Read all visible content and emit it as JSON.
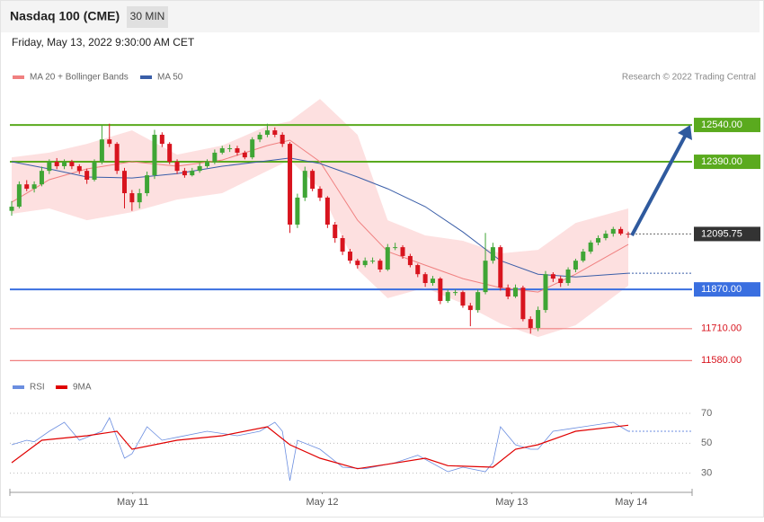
{
  "chart_data": {
    "type": "candlestick",
    "title": "Nasdaq 100 (CME)",
    "interval": "30 MIN",
    "subtitle": "Friday, May 13, 2022 9:30:00 AM CET",
    "credit": "Research © 2022 Trading Central",
    "colors": {
      "up": "#3fa535",
      "down": "#d8141e"
    },
    "xlim": [
      1,
      83
    ],
    "ylim": [
      11530,
      12683
    ],
    "xticks": [
      {
        "value": 17.1,
        "label": "May 11"
      },
      {
        "value": 42.3,
        "label": "May 12"
      },
      {
        "value": 67.5,
        "label": "May 13"
      },
      {
        "value": 83.4,
        "label": "May 14"
      }
    ],
    "ohlc": [
      [
        12190,
        12230,
        12170,
        12207
      ],
      [
        12207,
        12310,
        12200,
        12298
      ],
      [
        12298,
        12315,
        12270,
        12280
      ],
      [
        12280,
        12310,
        12265,
        12298
      ],
      [
        12298,
        12370,
        12290,
        12353
      ],
      [
        12353,
        12400,
        12340,
        12390
      ],
      [
        12390,
        12405,
        12360,
        12372
      ],
      [
        12372,
        12400,
        12360,
        12390
      ],
      [
        12390,
        12398,
        12360,
        12372
      ],
      [
        12372,
        12380,
        12340,
        12353
      ],
      [
        12353,
        12362,
        12300,
        12317
      ],
      [
        12317,
        12400,
        12310,
        12390
      ],
      [
        12390,
        12540,
        12380,
        12481
      ],
      [
        12481,
        12545,
        12450,
        12463
      ],
      [
        12463,
        12470,
        12340,
        12353
      ],
      [
        12353,
        12365,
        12200,
        12262
      ],
      [
        12262,
        12275,
        12190,
        12225
      ],
      [
        12225,
        12280,
        12200,
        12262
      ],
      [
        12262,
        12350,
        12250,
        12335
      ],
      [
        12335,
        12520,
        12320,
        12500
      ],
      [
        12500,
        12510,
        12450,
        12463
      ],
      [
        12463,
        12470,
        12380,
        12390
      ],
      [
        12390,
        12400,
        12340,
        12353
      ],
      [
        12353,
        12365,
        12325,
        12335
      ],
      [
        12335,
        12365,
        12330,
        12353
      ],
      [
        12353,
        12385,
        12345,
        12372
      ],
      [
        12372,
        12400,
        12365,
        12390
      ],
      [
        12390,
        12440,
        12380,
        12427
      ],
      [
        12427,
        12455,
        12420,
        12445
      ],
      [
        12445,
        12460,
        12430,
        12445
      ],
      [
        12445,
        12455,
        12415,
        12427
      ],
      [
        12427,
        12435,
        12400,
        12408
      ],
      [
        12408,
        12490,
        12400,
        12481
      ],
      [
        12481,
        12510,
        12470,
        12500
      ],
      [
        12500,
        12545,
        12490,
        12518
      ],
      [
        12518,
        12530,
        12490,
        12500
      ],
      [
        12500,
        12510,
        12450,
        12463
      ],
      [
        12463,
        12470,
        12100,
        12134
      ],
      [
        12134,
        12260,
        12120,
        12244
      ],
      [
        12244,
        12370,
        12230,
        12353
      ],
      [
        12353,
        12360,
        12270,
        12280
      ],
      [
        12280,
        12290,
        12230,
        12244
      ],
      [
        12244,
        12250,
        12120,
        12134
      ],
      [
        12134,
        12145,
        12060,
        12079
      ],
      [
        12079,
        12090,
        12010,
        12024
      ],
      [
        12024,
        12035,
        11975,
        11987
      ],
      [
        11987,
        11995,
        11955,
        11969
      ],
      [
        11969,
        12000,
        11960,
        11987
      ],
      [
        11987,
        12000,
        11975,
        11987
      ],
      [
        11987,
        11995,
        11940,
        11951
      ],
      [
        11951,
        12055,
        11945,
        12042
      ],
      [
        12042,
        12060,
        12030,
        12042
      ],
      [
        12042,
        12050,
        11995,
        12006
      ],
      [
        12006,
        12015,
        11960,
        11969
      ],
      [
        11969,
        11975,
        11920,
        11932
      ],
      [
        11932,
        11940,
        11880,
        11896
      ],
      [
        11896,
        11925,
        11885,
        11914
      ],
      [
        11914,
        11920,
        11810,
        11823
      ],
      [
        11823,
        11870,
        11815,
        11859
      ],
      [
        11859,
        11870,
        11845,
        11859
      ],
      [
        11859,
        11865,
        11795,
        11804
      ],
      [
        11804,
        11815,
        11720,
        11786
      ],
      [
        11786,
        11870,
        11775,
        11859
      ],
      [
        11859,
        12100,
        11850,
        11987
      ],
      [
        11987,
        12060,
        11975,
        12042
      ],
      [
        12042,
        12050,
        11865,
        11877
      ],
      [
        11877,
        11890,
        11830,
        11841
      ],
      [
        11841,
        11890,
        11835,
        11877
      ],
      [
        11877,
        11885,
        11740,
        11749
      ],
      [
        11749,
        11760,
        11690,
        11713
      ],
      [
        11713,
        11800,
        11700,
        11786
      ],
      [
        11786,
        11945,
        11775,
        11932
      ],
      [
        11932,
        11940,
        11900,
        11914
      ],
      [
        11914,
        11925,
        11880,
        11896
      ],
      [
        11896,
        11960,
        11885,
        11951
      ],
      [
        11951,
        11995,
        11940,
        11987
      ],
      [
        11987,
        12035,
        11980,
        12024
      ],
      [
        12024,
        12070,
        12015,
        12061
      ],
      [
        12061,
        12090,
        12050,
        12079
      ],
      [
        12079,
        12110,
        12070,
        12097
      ],
      [
        12097,
        12125,
        12085,
        12116
      ],
      [
        12116,
        12125,
        12090,
        12097
      ],
      [
        12097,
        12105,
        12080,
        12095.75
      ]
    ],
    "overlays": [
      {
        "name": "MA 20 + Bollinger Bands",
        "color": "#f08080",
        "band_color": "#fde0e0",
        "x": [
          1,
          6,
          11,
          17,
          23,
          29,
          35,
          38,
          42,
          47,
          51,
          56,
          61,
          66,
          71,
          76,
          83
        ],
        "values": [
          12225,
          12317,
          12361,
          12390,
          12372,
          12397,
          12456,
          12478,
          12390,
          12152,
          12024,
          11969,
          11914,
          11877,
          11859,
          11932,
          12053
        ],
        "upper": [
          12408,
          12427,
          12463,
          12518,
          12419,
          12456,
          12536,
          12555,
          12646,
          12500,
          12152,
          12090,
          12068,
          12017,
          12031,
          12141,
          12200
        ],
        "lower": [
          12178,
          12200,
          12152,
          12185,
          12236,
          12262,
          12353,
          12397,
          12280,
          11951,
          11834,
          11877,
          11812,
          11731,
          11676,
          11724,
          11885
        ]
      },
      {
        "name": "MA 50",
        "color": "#3a5ea8",
        "x": [
          1,
          6,
          11,
          17,
          23,
          29,
          35,
          38,
          42,
          47,
          51,
          56,
          61,
          66,
          71,
          76,
          83
        ],
        "values": [
          12390,
          12361,
          12328,
          12324,
          12342,
          12372,
          12394,
          12405,
          12383,
          12328,
          12280,
          12207,
          12104,
          11987,
          11932,
          11921,
          11936
        ]
      }
    ],
    "levels": [
      {
        "value": 12540,
        "label": "12540.00",
        "color": "#5aaa1e",
        "label_box": true
      },
      {
        "value": 12390,
        "label": "12390.00",
        "color": "#5aaa1e",
        "label_box": true
      },
      {
        "value": 11870,
        "label": "11870.00",
        "color": "#3a6fe0",
        "label_box": true
      },
      {
        "value": 11710,
        "label": "11710.00",
        "color": "#f08080",
        "label_box": false
      },
      {
        "value": 11580,
        "label": "11580.00",
        "color": "#f08080",
        "label_box": false
      }
    ],
    "last_price": 12095.75,
    "rsi": {
      "ylim": [
        22,
        79
      ],
      "yticks": [
        70,
        50,
        30
      ],
      "series": [
        {
          "name": "RSI",
          "color": "#6b8ee0",
          "x": [
            1,
            3,
            4,
            6,
            8,
            10,
            13,
            14,
            16,
            17,
            19,
            21,
            23,
            27,
            31,
            34,
            36,
            37,
            38,
            39,
            42,
            45,
            48,
            52,
            55,
            59,
            61,
            64,
            65,
            66,
            68,
            70,
            71,
            73,
            77,
            81,
            83
          ],
          "values": [
            49,
            52,
            51,
            58,
            64,
            52,
            58,
            67,
            40,
            43,
            61,
            52,
            54,
            58,
            55,
            58,
            64,
            58,
            25,
            52,
            46,
            34,
            33,
            37,
            42,
            31,
            34,
            31,
            37,
            61,
            49,
            46,
            46,
            58,
            61,
            64,
            58
          ]
        },
        {
          "name": "9MA",
          "color": "#e00000",
          "x": [
            1,
            5,
            11,
            15,
            17,
            23,
            29,
            35,
            38,
            42,
            47,
            51,
            56,
            59,
            65,
            68,
            71,
            76,
            83
          ],
          "values": [
            37,
            52,
            55,
            58,
            46,
            52,
            55,
            61,
            49,
            40,
            33,
            36,
            40,
            35,
            34,
            46,
            49,
            58,
            62
          ]
        }
      ]
    }
  }
}
